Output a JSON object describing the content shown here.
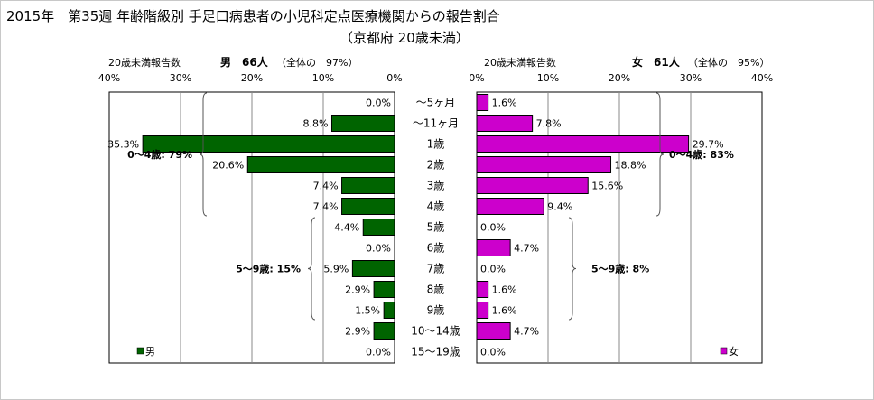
{
  "title": {
    "line1": "2015年　第35週 年齢階級別 手足口病患者の小児科定点医療機関からの報告割合",
    "line2": "（京都府 20歳未満）"
  },
  "colors": {
    "male_bar": "#006400",
    "female_bar": "#cc00cc",
    "bar_stroke": "#000000",
    "grid": "#888888"
  },
  "chart_data": {
    "type": "bar",
    "orientation": "horizontal",
    "layout": "population-pyramid",
    "categories": [
      "〜5ヶ月",
      "〜11ヶ月",
      "1歳",
      "2歳",
      "3歳",
      "4歳",
      "5歳",
      "6歳",
      "7歳",
      "8歳",
      "9歳",
      "10〜14歳",
      "15〜19歳"
    ],
    "xlim": [
      0,
      40
    ],
    "x_ticks": [
      "40%",
      "30%",
      "20%",
      "10%",
      "0%"
    ],
    "x_ticks_right": [
      "0%",
      "10%",
      "20%",
      "30%",
      "40%"
    ],
    "grid": true,
    "series": [
      {
        "name": "男",
        "side": "left",
        "header_label": "20歳未満報告数",
        "header_sex": "男",
        "header_count": "66人",
        "header_share": "（全体の　97%）",
        "values": [
          0.0,
          8.8,
          35.3,
          20.6,
          7.4,
          7.4,
          4.4,
          0.0,
          5.9,
          2.9,
          1.5,
          2.9,
          0.0
        ],
        "labels": [
          "0.0%",
          "8.8%",
          "35.3%",
          "20.6%",
          "7.4%",
          "7.4%",
          "4.4%",
          "0.0%",
          "5.9%",
          "2.9%",
          "1.5%",
          "2.9%",
          "0.0%"
        ],
        "legend": "男",
        "group_annotations": [
          {
            "text": "0〜4歳: 79%",
            "from": 0,
            "to": 5
          },
          {
            "text": "5〜9歳: 15%",
            "from": 6,
            "to": 10
          }
        ]
      },
      {
        "name": "女",
        "side": "right",
        "header_label": "20歳未満報告数",
        "header_sex": "女",
        "header_count": "61人",
        "header_share": "（全体の　95%）",
        "values": [
          1.6,
          7.8,
          29.7,
          18.8,
          15.6,
          9.4,
          0.0,
          4.7,
          0.0,
          1.6,
          1.6,
          4.7,
          0.0
        ],
        "labels": [
          "1.6%",
          "7.8%",
          "29.7%",
          "18.8%",
          "15.6%",
          "9.4%",
          "0.0%",
          "4.7%",
          "0.0%",
          "1.6%",
          "1.6%",
          "4.7%",
          "0.0%"
        ],
        "legend": "女",
        "group_annotations": [
          {
            "text": "0〜4歳: 83%",
            "from": 0,
            "to": 5
          },
          {
            "text": "5〜9歳: 8%",
            "from": 6,
            "to": 10
          }
        ]
      }
    ]
  }
}
